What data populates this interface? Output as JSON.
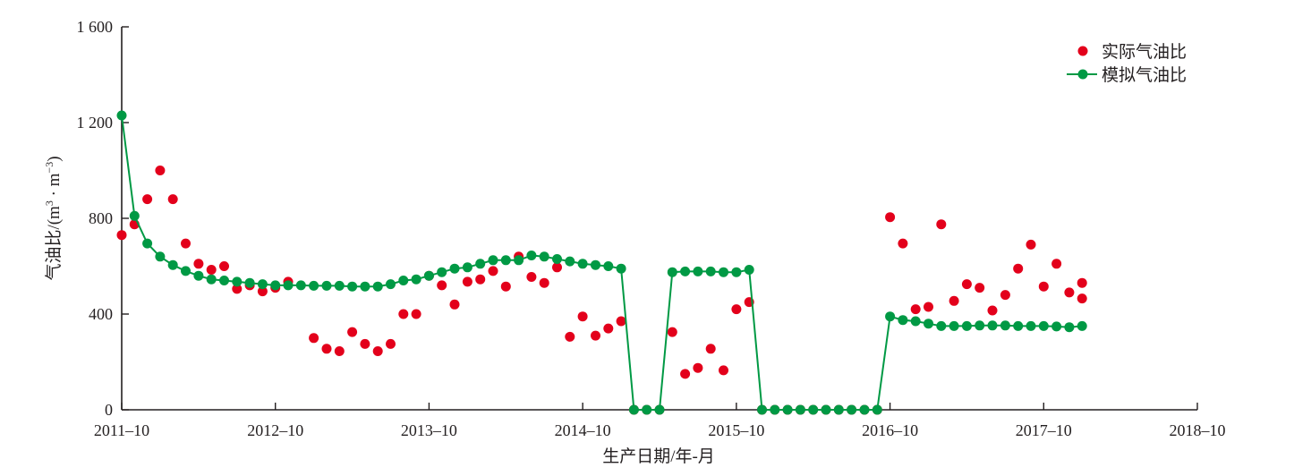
{
  "chart_data": {
    "type": "scatter",
    "xlabel": "生产日期/年-月",
    "ylabel": "气油比/(m³·m⁻³)",
    "ylabel_parts": {
      "main": "气油比/(m",
      "sup1": "3",
      "mid": " · m",
      "sup2": "−3",
      "end": ")"
    },
    "x_start": "2011-10",
    "x_end": "2018-10",
    "xticks": [
      "2011-10",
      "2012-10",
      "2013-10",
      "2014-10",
      "2015-10",
      "2016-10",
      "2017-10",
      "2018-10"
    ],
    "yticks": [
      0,
      400,
      800,
      1200,
      1600
    ],
    "ytick_labels": [
      "0",
      "400",
      "800",
      "1 200",
      "1 600"
    ],
    "ylim": [
      0,
      1600
    ],
    "grid": false,
    "legend_position": "top-right",
    "series": [
      {
        "name": "实际气油比",
        "style": "markers",
        "color": "#e3001b",
        "points": [
          [
            "2011-10",
            730
          ],
          [
            "2011-11",
            775
          ],
          [
            "2011-12",
            880
          ],
          [
            "2012-01",
            1000
          ],
          [
            "2012-02",
            880
          ],
          [
            "2012-03",
            695
          ],
          [
            "2012-04",
            610
          ],
          [
            "2012-05",
            585
          ],
          [
            "2012-06",
            600
          ],
          [
            "2012-07",
            505
          ],
          [
            "2012-08",
            520
          ],
          [
            "2012-09",
            495
          ],
          [
            "2012-10",
            510
          ],
          [
            "2012-11",
            535
          ],
          [
            "2013-01",
            300
          ],
          [
            "2013-02",
            255
          ],
          [
            "2013-03",
            245
          ],
          [
            "2013-04",
            325
          ],
          [
            "2013-05",
            275
          ],
          [
            "2013-06",
            245
          ],
          [
            "2013-07",
            275
          ],
          [
            "2013-08",
            400
          ],
          [
            "2013-09",
            400
          ],
          [
            "2013-10",
            560
          ],
          [
            "2013-11",
            520
          ],
          [
            "2013-12",
            440
          ],
          [
            "2014-01",
            535
          ],
          [
            "2014-02",
            545
          ],
          [
            "2014-03",
            580
          ],
          [
            "2014-04",
            515
          ],
          [
            "2014-05",
            640
          ],
          [
            "2014-06",
            555
          ],
          [
            "2014-07",
            530
          ],
          [
            "2014-08",
            595
          ],
          [
            "2014-09",
            305
          ],
          [
            "2014-10",
            390
          ],
          [
            "2014-11",
            310
          ],
          [
            "2014-12",
            340
          ],
          [
            "2015-01",
            370
          ],
          [
            "2015-02",
            0
          ],
          [
            "2015-03",
            0
          ],
          [
            "2015-04",
            0
          ],
          [
            "2015-05",
            325
          ],
          [
            "2015-06",
            150
          ],
          [
            "2015-07",
            175
          ],
          [
            "2015-08",
            255
          ],
          [
            "2015-09",
            165
          ],
          [
            "2015-10",
            420
          ],
          [
            "2015-11",
            450
          ],
          [
            "2015-12",
            0
          ],
          [
            "2016-01",
            0
          ],
          [
            "2016-02",
            0
          ],
          [
            "2016-03",
            0
          ],
          [
            "2016-04",
            0
          ],
          [
            "2016-05",
            0
          ],
          [
            "2016-06",
            0
          ],
          [
            "2016-07",
            0
          ],
          [
            "2016-08",
            0
          ],
          [
            "2016-09",
            0
          ],
          [
            "2016-10",
            805
          ],
          [
            "2016-11",
            695
          ],
          [
            "2016-12",
            420
          ],
          [
            "2017-01",
            430
          ],
          [
            "2017-02",
            775
          ],
          [
            "2017-03",
            455
          ],
          [
            "2017-04",
            525
          ],
          [
            "2017-05",
            510
          ],
          [
            "2017-06",
            415
          ],
          [
            "2017-07",
            480
          ],
          [
            "2017-08",
            590
          ],
          [
            "2017-09",
            690
          ],
          [
            "2017-10",
            515
          ],
          [
            "2017-11",
            610
          ],
          [
            "2017-12",
            490
          ],
          [
            "2018-01",
            530
          ],
          [
            "2018-01",
            465
          ]
        ]
      },
      {
        "name": "模拟气油比",
        "style": "line-markers",
        "color": "#009944",
        "points": [
          [
            "2011-10",
            1230
          ],
          [
            "2011-11",
            810
          ],
          [
            "2011-12",
            695
          ],
          [
            "2012-01",
            640
          ],
          [
            "2012-02",
            605
          ],
          [
            "2012-03",
            580
          ],
          [
            "2012-04",
            560
          ],
          [
            "2012-05",
            545
          ],
          [
            "2012-06",
            540
          ],
          [
            "2012-07",
            535
          ],
          [
            "2012-08",
            530
          ],
          [
            "2012-09",
            525
          ],
          [
            "2012-10",
            520
          ],
          [
            "2012-11",
            520
          ],
          [
            "2012-12",
            520
          ],
          [
            "2013-01",
            518
          ],
          [
            "2013-02",
            518
          ],
          [
            "2013-03",
            518
          ],
          [
            "2013-04",
            515
          ],
          [
            "2013-05",
            515
          ],
          [
            "2013-06",
            515
          ],
          [
            "2013-07",
            525
          ],
          [
            "2013-08",
            540
          ],
          [
            "2013-09",
            545
          ],
          [
            "2013-10",
            560
          ],
          [
            "2013-11",
            575
          ],
          [
            "2013-12",
            590
          ],
          [
            "2014-01",
            595
          ],
          [
            "2014-02",
            610
          ],
          [
            "2014-03",
            625
          ],
          [
            "2014-04",
            625
          ],
          [
            "2014-05",
            625
          ],
          [
            "2014-06",
            645
          ],
          [
            "2014-07",
            640
          ],
          [
            "2014-08",
            630
          ],
          [
            "2014-09",
            620
          ],
          [
            "2014-10",
            610
          ],
          [
            "2014-11",
            605
          ],
          [
            "2014-12",
            600
          ],
          [
            "2015-01",
            590
          ],
          [
            "2015-02",
            0
          ],
          [
            "2015-03",
            0
          ],
          [
            "2015-04",
            0
          ],
          [
            "2015-05",
            575
          ],
          [
            "2015-06",
            578
          ],
          [
            "2015-07",
            578
          ],
          [
            "2015-08",
            578
          ],
          [
            "2015-09",
            575
          ],
          [
            "2015-10",
            575
          ],
          [
            "2015-11",
            585
          ],
          [
            "2015-12",
            0
          ],
          [
            "2016-01",
            0
          ],
          [
            "2016-02",
            0
          ],
          [
            "2016-03",
            0
          ],
          [
            "2016-04",
            0
          ],
          [
            "2016-05",
            0
          ],
          [
            "2016-06",
            0
          ],
          [
            "2016-07",
            0
          ],
          [
            "2016-08",
            0
          ],
          [
            "2016-09",
            0
          ],
          [
            "2016-10",
            390
          ],
          [
            "2016-11",
            375
          ],
          [
            "2016-12",
            370
          ],
          [
            "2017-01",
            360
          ],
          [
            "2017-02",
            350
          ],
          [
            "2017-03",
            350
          ],
          [
            "2017-04",
            350
          ],
          [
            "2017-05",
            352
          ],
          [
            "2017-06",
            352
          ],
          [
            "2017-07",
            352
          ],
          [
            "2017-08",
            350
          ],
          [
            "2017-09",
            350
          ],
          [
            "2017-10",
            350
          ],
          [
            "2017-11",
            348
          ],
          [
            "2017-12",
            345
          ],
          [
            "2018-01",
            350
          ]
        ]
      }
    ]
  }
}
